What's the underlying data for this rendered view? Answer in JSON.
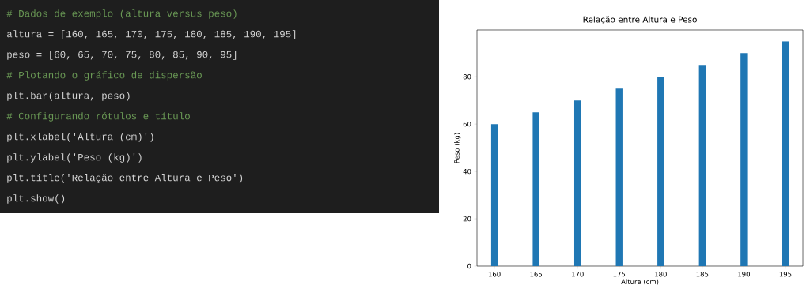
{
  "chart_data": [
    {
      "type": "other",
      "annotations": [
        "# Dados de exemplo (altura versus peso)",
        "altura = [160, 165, 170, 175, 180, 185, 190, 195]",
        "peso = [60, 65, 70, 75, 80, 85, 90, 95]",
        "# Plotando o gráfico de dispersão",
        "plt.bar(altura, peso)",
        "# Configurando rótulos e título",
        "plt.xlabel('Altura (cm)')",
        "plt.ylabel('Peso (kg)')",
        "plt.title('Relação entre Altura e Peso')",
        "plt.show()"
      ],
      "colors": [
        "#6a9955",
        "#d4d4d4",
        "#d4d4d4",
        "#6a9955",
        "#d4d4d4",
        "#6a9955",
        "#d4d4d4",
        "#d4d4d4",
        "#d4d4d4",
        "#d4d4d4"
      ]
    },
    {
      "type": "bar",
      "title": "Relação entre Altura e Peso",
      "xlabel": "Altura (cm)",
      "ylabel": "Peso (kg)",
      "x": [
        160,
        165,
        170,
        175,
        180,
        185,
        190,
        195
      ],
      "values": [
        60,
        65,
        70,
        75,
        80,
        85,
        90,
        95
      ],
      "color": "#1f77b4",
      "xlim": [
        157.9,
        197.1
      ],
      "ylim": [
        0,
        99.75
      ],
      "xticks": [
        160,
        165,
        170,
        175,
        180,
        185,
        190,
        195
      ],
      "yticks": [
        0,
        20,
        40,
        60,
        80
      ]
    }
  ]
}
